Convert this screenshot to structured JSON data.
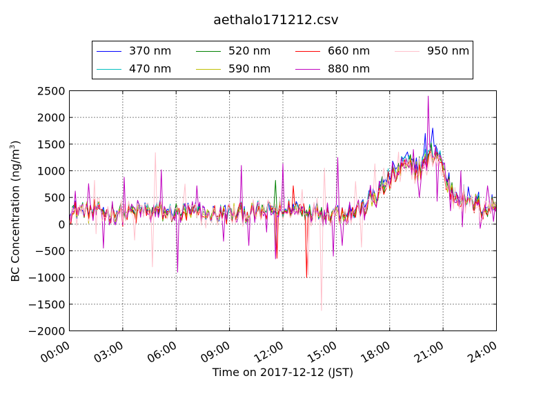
{
  "chart_data": {
    "type": "line",
    "title": "aethalo171212.csv",
    "xlabel": "Time on 2017-12-12 (JST)",
    "ylabel": "BC Concentration (ng/m",
    "ylabel_superscript": "3",
    "ylabel_suffix": ")",
    "ylim": [
      -2000,
      2500
    ],
    "xlim": [
      "00:00",
      "24:00"
    ],
    "yticks": [
      "2500",
      "2000",
      "1500",
      "1000",
      "500",
      "0",
      "−500",
      "−1000",
      "−1500",
      "−2000"
    ],
    "ytick_values": [
      2500,
      2000,
      1500,
      1000,
      500,
      0,
      -500,
      -1000,
      -1500,
      -2000
    ],
    "xticks": [
      "00:00",
      "03:00",
      "06:00",
      "09:00",
      "12:00",
      "15:00",
      "18:00",
      "21:00",
      "24:00"
    ],
    "xtick_hours": [
      0,
      3,
      6,
      9,
      12,
      15,
      18,
      21,
      24
    ],
    "grid": true,
    "legend_placement": "top, above plot",
    "series": [
      {
        "name": "370 nm",
        "color": "#0000ff",
        "offset": 0,
        "noise": 0.95,
        "scale": 1.08
      },
      {
        "name": "470 nm",
        "color": "#00bfbf",
        "offset": 7,
        "noise": 0.9,
        "scale": 1.04
      },
      {
        "name": "520 nm",
        "color": "#008000",
        "offset": 13,
        "noise": 1.0,
        "scale": 1.0
      },
      {
        "name": "590 nm",
        "color": "#bfbf00",
        "offset": 19,
        "noise": 1.05,
        "scale": 0.98
      },
      {
        "name": "660 nm",
        "color": "#ff0000",
        "offset": 29,
        "noise": 1.15,
        "scale": 0.96
      },
      {
        "name": "880 nm",
        "color": "#bf00bf",
        "offset": 37,
        "noise": 1.45,
        "scale": 0.97
      },
      {
        "name": "950 nm",
        "color": "#ffc0cb",
        "offset": 43,
        "noise": 1.7,
        "scale": 0.95
      }
    ],
    "profile": [
      {
        "t": 0.0,
        "y": 230
      },
      {
        "t": 1.0,
        "y": 240
      },
      {
        "t": 2.0,
        "y": 220
      },
      {
        "t": 3.0,
        "y": 210
      },
      {
        "t": 4.0,
        "y": 230
      },
      {
        "t": 5.0,
        "y": 250
      },
      {
        "t": 6.0,
        "y": 200
      },
      {
        "t": 7.0,
        "y": 200
      },
      {
        "t": 8.0,
        "y": 190
      },
      {
        "t": 9.0,
        "y": 200
      },
      {
        "t": 10.0,
        "y": 210
      },
      {
        "t": 11.0,
        "y": 230
      },
      {
        "t": 12.0,
        "y": 280
      },
      {
        "t": 13.0,
        "y": 280
      },
      {
        "t": 14.0,
        "y": 250
      },
      {
        "t": 15.0,
        "y": 200
      },
      {
        "t": 16.0,
        "y": 220
      },
      {
        "t": 16.5,
        "y": 300
      },
      {
        "t": 17.0,
        "y": 480
      },
      {
        "t": 17.5,
        "y": 650
      },
      {
        "t": 18.0,
        "y": 830
      },
      {
        "t": 18.5,
        "y": 1020
      },
      {
        "t": 19.0,
        "y": 1100
      },
      {
        "t": 19.5,
        "y": 1050
      },
      {
        "t": 20.0,
        "y": 1150
      },
      {
        "t": 20.5,
        "y": 1380
      },
      {
        "t": 20.8,
        "y": 1250
      },
      {
        "t": 21.2,
        "y": 800
      },
      {
        "t": 21.6,
        "y": 560
      },
      {
        "t": 22.0,
        "y": 520
      },
      {
        "t": 22.5,
        "y": 420
      },
      {
        "t": 23.0,
        "y": 340
      },
      {
        "t": 23.5,
        "y": 300
      },
      {
        "t": 24.0,
        "y": 350
      }
    ],
    "spikes": [
      {
        "t": 0.3,
        "y": 620,
        "series": "880 nm"
      },
      {
        "t": 1.1,
        "y": 760,
        "series": "880 nm"
      },
      {
        "t": 1.4,
        "y": 820,
        "series": "950 nm"
      },
      {
        "t": 1.5,
        "y": -180,
        "series": "950 nm"
      },
      {
        "t": 1.9,
        "y": -450,
        "series": "880 nm"
      },
      {
        "t": 3.1,
        "y": 880,
        "series": "880 nm"
      },
      {
        "t": 3.7,
        "y": -300,
        "series": "950 nm"
      },
      {
        "t": 4.7,
        "y": -800,
        "series": "950 nm"
      },
      {
        "t": 4.8,
        "y": 1340,
        "series": "950 nm"
      },
      {
        "t": 5.2,
        "y": 1020,
        "series": "880 nm"
      },
      {
        "t": 6.1,
        "y": -900,
        "series": "880 nm"
      },
      {
        "t": 6.5,
        "y": 750,
        "series": "950 nm"
      },
      {
        "t": 7.2,
        "y": 720,
        "series": "880 nm"
      },
      {
        "t": 8.7,
        "y": -320,
        "series": "880 nm"
      },
      {
        "t": 9.7,
        "y": 1100,
        "series": "880 nm"
      },
      {
        "t": 10.1,
        "y": -400,
        "series": "880 nm"
      },
      {
        "t": 11.1,
        "y": -150,
        "series": "880 nm"
      },
      {
        "t": 11.6,
        "y": -650,
        "series": "880 nm"
      },
      {
        "t": 11.6,
        "y": 820,
        "series": "520 nm"
      },
      {
        "t": 11.6,
        "y": -400,
        "series": "590 nm"
      },
      {
        "t": 11.7,
        "y": -640,
        "series": "660 nm"
      },
      {
        "t": 12.0,
        "y": 1130,
        "series": "880 nm"
      },
      {
        "t": 12.6,
        "y": 720,
        "series": "660 nm"
      },
      {
        "t": 13.1,
        "y": 650,
        "series": "950 nm"
      },
      {
        "t": 13.3,
        "y": -1000,
        "series": "660 nm"
      },
      {
        "t": 13.4,
        "y": -950,
        "series": "950 nm"
      },
      {
        "t": 14.2,
        "y": 1480,
        "series": "950 nm"
      },
      {
        "t": 14.2,
        "y": -1620,
        "series": "950 nm"
      },
      {
        "t": 14.3,
        "y": 1050,
        "series": "950 nm"
      },
      {
        "t": 14.8,
        "y": -600,
        "series": "880 nm"
      },
      {
        "t": 15.1,
        "y": 1250,
        "series": "880 nm"
      },
      {
        "t": 15.3,
        "y": -400,
        "series": "880 nm"
      },
      {
        "t": 16.1,
        "y": 800,
        "series": "950 nm"
      },
      {
        "t": 16.4,
        "y": -430,
        "series": "950 nm"
      },
      {
        "t": 17.2,
        "y": 1130,
        "series": "950 nm"
      },
      {
        "t": 17.7,
        "y": 1050,
        "series": "950 nm"
      },
      {
        "t": 18.5,
        "y": 1350,
        "series": "950 nm"
      },
      {
        "t": 18.9,
        "y": 1300,
        "series": "370 nm"
      },
      {
        "t": 19.3,
        "y": 1400,
        "series": "880 nm"
      },
      {
        "t": 19.7,
        "y": 500,
        "series": "880 nm"
      },
      {
        "t": 20.0,
        "y": 1700,
        "series": "370 nm"
      },
      {
        "t": 20.2,
        "y": 2400,
        "series": "880 nm"
      },
      {
        "t": 20.4,
        "y": 1800,
        "series": "370 nm"
      },
      {
        "t": 20.7,
        "y": 430,
        "series": "880 nm"
      },
      {
        "t": 21.1,
        "y": 1150,
        "series": "880 nm"
      },
      {
        "t": 21.4,
        "y": 250,
        "series": "880 nm"
      },
      {
        "t": 22.0,
        "y": 1000,
        "series": "880 nm"
      },
      {
        "t": 22.1,
        "y": -50,
        "series": "880 nm"
      },
      {
        "t": 23.1,
        "y": -80,
        "series": "880 nm"
      },
      {
        "t": 23.5,
        "y": 720,
        "series": "880 nm"
      },
      {
        "t": 23.8,
        "y": 50,
        "series": "880 nm"
      }
    ]
  }
}
